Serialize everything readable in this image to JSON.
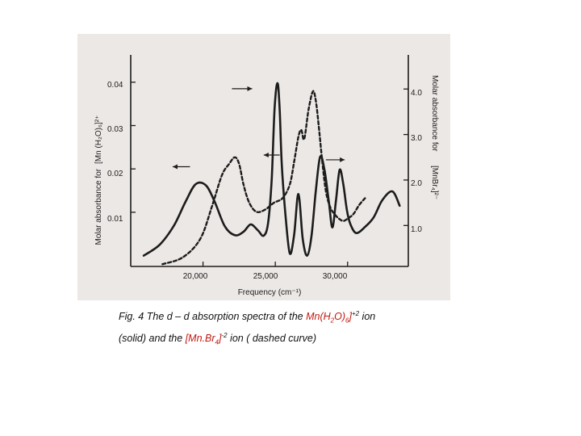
{
  "chart_data": {
    "type": "line",
    "xlabel": "Frequency (cm⁻¹)",
    "x_ticks": [
      "20,000",
      "25,000",
      "30,000"
    ],
    "x_tick_values": [
      20000,
      25000,
      30000
    ],
    "xlim": [
      15000,
      34200
    ],
    "left_axis": {
      "label_prefix": "Molar absorbance for",
      "label_formula": "[Mn (H₂O)₆]²⁺",
      "ticks": [
        "0.01",
        "0.02",
        "0.03",
        "0.04"
      ],
      "tick_values": [
        0.01,
        0.02,
        0.03,
        0.04
      ],
      "ylim": [
        -0.0025,
        0.0463
      ]
    },
    "right_axis": {
      "label_prefix": "Molar absorbance for",
      "label_formula": "[MnBr₄]²⁻",
      "ticks": [
        "1.0",
        "2.0",
        "3.0",
        "4.0"
      ],
      "tick_values": [
        1.0,
        2.0,
        3.0,
        4.0
      ],
      "ylim": [
        0.1,
        4.75
      ]
    },
    "series": [
      {
        "style": "solid",
        "axis": "left",
        "x": [
          15900,
          17000,
          18000,
          18800,
          19500,
          20200,
          20800,
          21500,
          22200,
          22800,
          23300,
          23800,
          24200,
          24500,
          24750,
          24950,
          25150,
          25300,
          25450,
          25700,
          26000,
          26300,
          26600,
          26900,
          27200,
          27500,
          27800,
          28100,
          28400,
          28700,
          28950,
          29200,
          29450,
          29700,
          29950,
          30200,
          30600,
          31200,
          31800,
          32400,
          33100,
          33600
        ],
        "y": [
          0.0,
          0.0025,
          0.007,
          0.0125,
          0.0165,
          0.0162,
          0.0125,
          0.0068,
          0.0047,
          0.0055,
          0.0072,
          0.0058,
          0.0046,
          0.0075,
          0.0175,
          0.034,
          0.0398,
          0.034,
          0.021,
          0.0095,
          0.0005,
          0.0048,
          0.0142,
          0.0038,
          0.0,
          0.0045,
          0.0148,
          0.0228,
          0.0198,
          0.0125,
          0.0065,
          0.0128,
          0.0198,
          0.0165,
          0.0105,
          0.0072,
          0.0052,
          0.0066,
          0.0088,
          0.0128,
          0.0148,
          0.0115
        ]
      },
      {
        "style": "dashed",
        "axis": "right",
        "x": [
          17200,
          18600,
          19800,
          20600,
          21300,
          21800,
          22200,
          22500,
          22800,
          23200,
          23700,
          24300,
          24900,
          25500,
          26000,
          26300,
          26600,
          26800,
          27000,
          27300,
          27600,
          27800,
          28000,
          28250,
          28500,
          28800,
          29100,
          29400,
          29700,
          30000,
          30400,
          30800,
          31200
        ],
        "y": [
          0.15,
          0.3,
          0.7,
          1.4,
          2.1,
          2.35,
          2.5,
          2.35,
          1.9,
          1.5,
          1.3,
          1.35,
          1.5,
          1.6,
          1.9,
          2.4,
          2.95,
          3.1,
          2.9,
          3.55,
          3.95,
          3.75,
          3.2,
          2.4,
          1.75,
          1.4,
          1.25,
          1.15,
          1.1,
          1.15,
          1.25,
          1.45,
          1.6
        ]
      }
    ],
    "annotations": [
      {
        "type": "arrow",
        "direction": "left",
        "x_from": 19100,
        "x_to": 17900,
        "y_left": 0.0205
      },
      {
        "type": "arrow",
        "direction": "right",
        "x_from": 22000,
        "x_to": 23400,
        "y_left": 0.0385
      },
      {
        "type": "arrow",
        "direction": "left",
        "x_from": 25300,
        "x_to": 24200,
        "y_left": 0.0232
      },
      {
        "type": "arrow",
        "direction": "right",
        "x_from": 28500,
        "x_to": 29800,
        "y_left": 0.0221
      }
    ],
    "grid": false,
    "legend": "none"
  },
  "caption": {
    "line1_pre": "Fig. 4 The d – d absorption spectra of the ",
    "formula1_a": "Mn(H",
    "formula1_b": "2",
    "formula1_c": "O)",
    "formula1_d": "6",
    "formula1_e": "]",
    "formula1_charge": "+2",
    "line1_post": " ion",
    "line2_pre": "(solid) and the ",
    "formula2_a": "[Mn.Br",
    "formula2_b": "4",
    "formula2_c": "]",
    "formula2_charge": "-2",
    "line2_post": " ion ( dashed curve)"
  },
  "colors": {
    "background": "#ece8e6",
    "ink": "#1c1c1c",
    "caption_highlight": "#c0180f"
  }
}
